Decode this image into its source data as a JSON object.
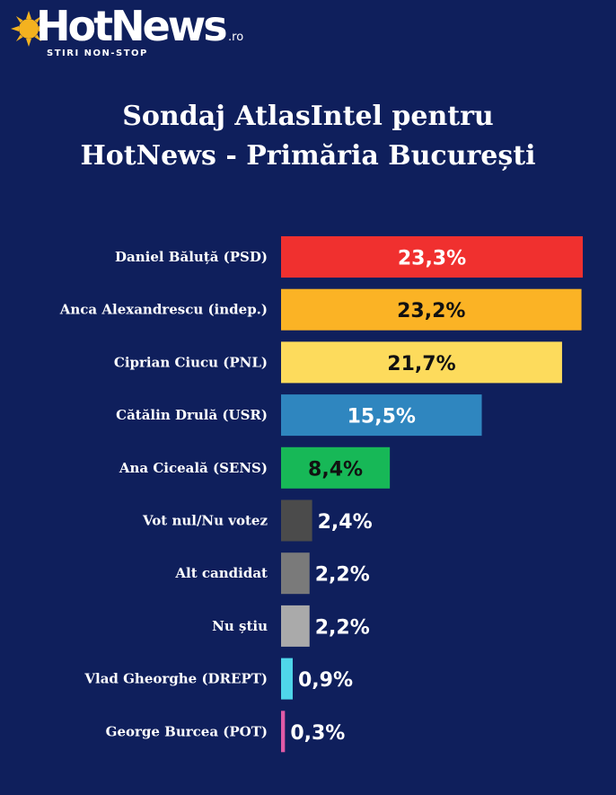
{
  "logo": {
    "name": "HotNews",
    "suffix": ".ro",
    "tagline": "STIRI NON-STOP"
  },
  "title_lines": [
    "Sondaj AtlasIntel pentru",
    "HotNews - Primăria București"
  ],
  "chart_data": {
    "type": "bar",
    "orientation": "horizontal",
    "categories": [
      "Daniel Băluță (PSD)",
      "Anca Alexandrescu (indep.)",
      "Ciprian Ciucu (PNL)",
      "Cătălin Drulă (USR)",
      "Ana Ciceală (SENS)",
      "Vot nul/Nu votez",
      "Alt candidat",
      "Nu știu",
      "Vlad Gheorghe (DREPT)",
      "George Burcea (POT)"
    ],
    "values": [
      23.3,
      23.2,
      21.7,
      15.5,
      8.4,
      2.4,
      2.2,
      2.2,
      0.9,
      0.3
    ],
    "value_labels": [
      "23,3%",
      "23,2%",
      "21,7%",
      "15,5%",
      "8,4%",
      "2,4%",
      "2,2%",
      "2,2%",
      "0,9%",
      "0,3%"
    ],
    "colors": [
      "#f0302f",
      "#fbb325",
      "#fddb5c",
      "#2f86bf",
      "#17b857",
      "#4b4b4b",
      "#7a7a7a",
      "#aaaaaa",
      "#4fd6ea",
      "#e05aa6"
    ],
    "label_colors": [
      "#ffffff",
      "#111111",
      "#111111",
      "#ffffff",
      "#111111",
      "#ffffff",
      "#ffffff",
      "#ffffff",
      "#ffffff",
      "#ffffff"
    ],
    "xlim": [
      0,
      23.3
    ],
    "grid": false,
    "legend": false
  }
}
